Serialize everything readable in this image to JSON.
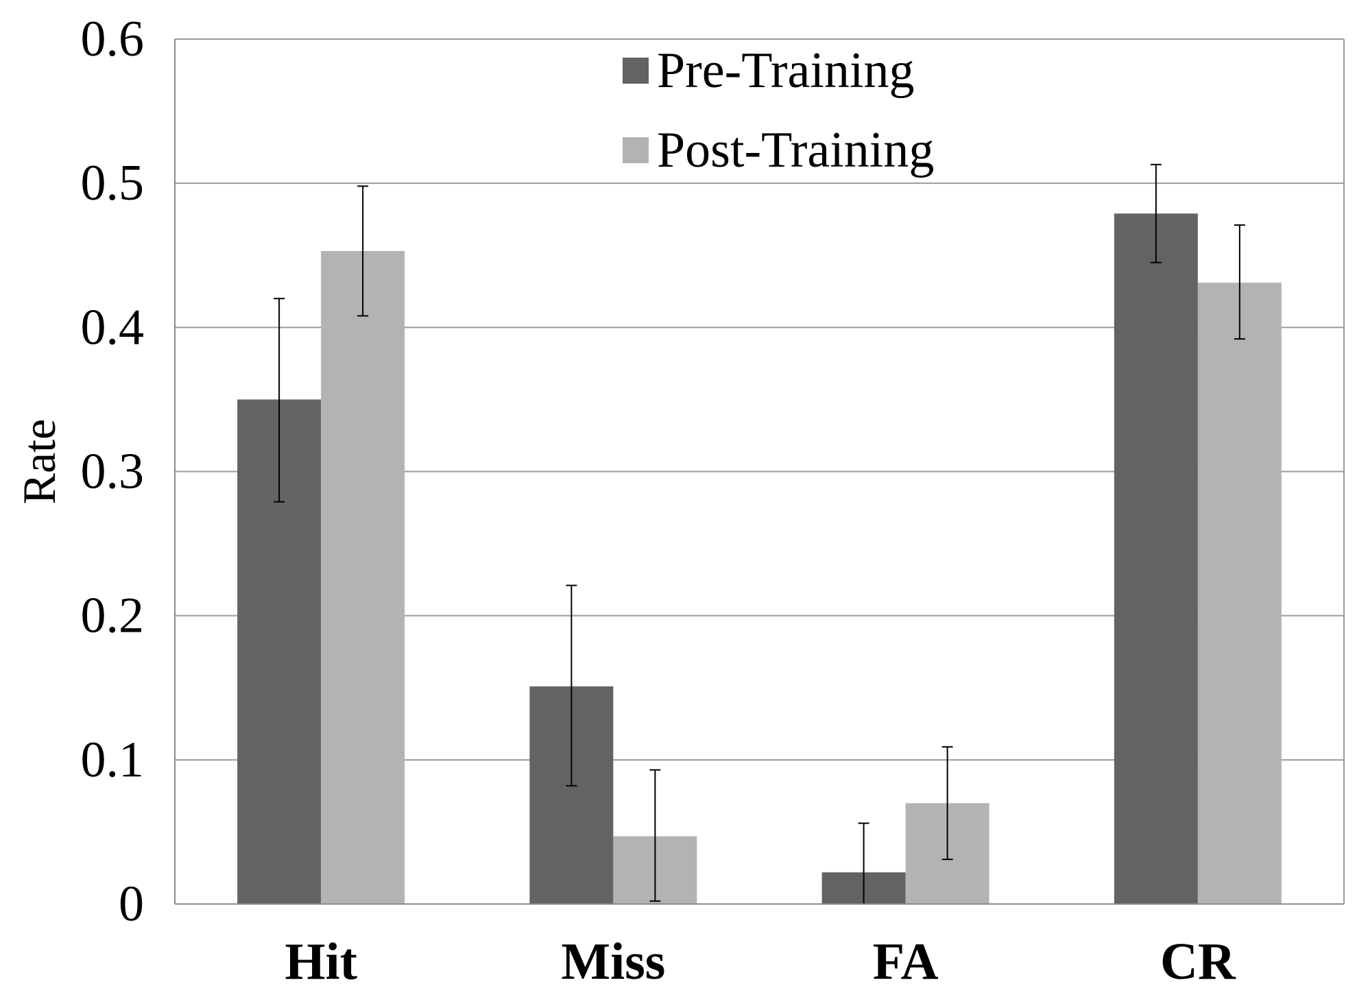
{
  "chart_data": {
    "type": "bar",
    "title": "",
    "xlabel": "",
    "ylabel": "Rate",
    "ylim": [
      0,
      0.6
    ],
    "yticks": [
      "0",
      "0.1",
      "0.2",
      "0.3",
      "0.4",
      "0.5",
      "0.6"
    ],
    "ytick_values": [
      0,
      0.1,
      0.2,
      0.3,
      0.4,
      0.5,
      0.6
    ],
    "grid": true,
    "legend_position": "top-center",
    "categories": [
      "Hit",
      "Miss",
      "FA",
      "CR"
    ],
    "series": [
      {
        "name": "Pre-Training",
        "color": "#636363",
        "values": [
          0.35,
          0.151,
          0.022,
          0.479
        ],
        "err_low": [
          0.279,
          0.082,
          0.0,
          0.445
        ],
        "err_high": [
          0.42,
          0.221,
          0.056,
          0.513
        ]
      },
      {
        "name": "Post-Training",
        "color": "#b3b3b3",
        "values": [
          0.453,
          0.047,
          0.07,
          0.431
        ],
        "err_low": [
          0.408,
          0.002,
          0.031,
          0.392
        ],
        "err_high": [
          0.498,
          0.093,
          0.109,
          0.471
        ]
      }
    ],
    "gridline_color": "#9a9a9a",
    "axis_color": "#8c8c8c",
    "errorbar_color": "#000000"
  }
}
